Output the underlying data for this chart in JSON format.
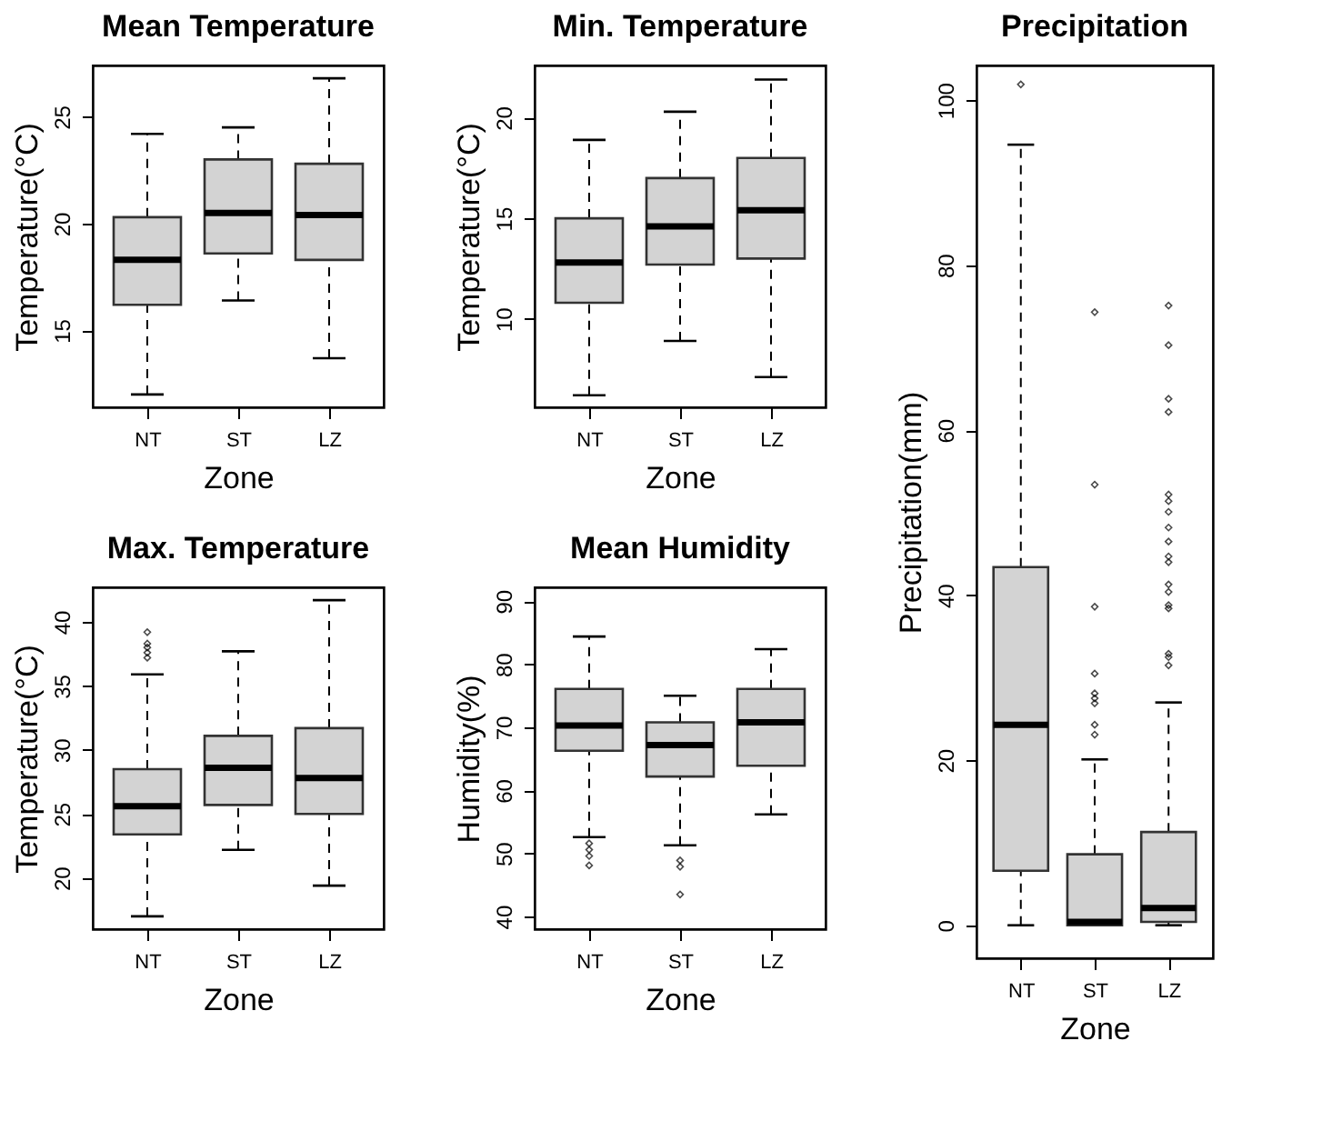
{
  "chart_data": [
    {
      "type": "box",
      "title": "Mean Temperature",
      "xlabel": "Zone",
      "ylabel": "Temperature(°C)",
      "categories": [
        "NT",
        "ST",
        "LZ"
      ],
      "ylim": [
        11.4,
        27.4
      ],
      "yticks": [
        15,
        20,
        25
      ],
      "grid": false,
      "series": [
        {
          "color": "#d3d3d3",
          "boxes": [
            {
              "low": 12.0,
              "q1": 16.2,
              "median": 18.3,
              "q3": 20.3,
              "high": 24.2
            },
            {
              "low": 16.4,
              "q1": 18.6,
              "median": 20.5,
              "q3": 23.0,
              "high": 24.5
            },
            {
              "low": 13.7,
              "q1": 18.3,
              "median": 20.4,
              "q3": 22.8,
              "high": 26.8
            }
          ]
        }
      ]
    },
    {
      "type": "box",
      "title": "Min. Temperature",
      "xlabel": "Zone",
      "ylabel": "Temperature(°C)",
      "categories": [
        "NT",
        "ST",
        "LZ"
      ],
      "ylim": [
        5.6,
        22.6
      ],
      "yticks": [
        10,
        15,
        20
      ],
      "grid": false,
      "series": [
        {
          "color": "#d3d3d3",
          "boxes": [
            {
              "low": 6.2,
              "q1": 10.8,
              "median": 12.8,
              "q3": 15.0,
              "high": 18.9
            },
            {
              "low": 8.9,
              "q1": 12.7,
              "median": 14.6,
              "q3": 17.0,
              "high": 20.3
            },
            {
              "low": 7.1,
              "q1": 13.0,
              "median": 15.4,
              "q3": 18.0,
              "high": 21.9
            }
          ]
        }
      ]
    },
    {
      "type": "box",
      "title": "Precipitation",
      "xlabel": "Zone",
      "ylabel": "Precipitation(mm)",
      "categories": [
        "NT",
        "ST",
        "LZ"
      ],
      "ylim": [
        -4.0,
        104.2
      ],
      "yticks": [
        0,
        20,
        40,
        60,
        80,
        100
      ],
      "grid": false,
      "series": [
        {
          "color": "#d3d3d3",
          "boxes": [
            {
              "low": 0,
              "q1": 6.6,
              "median": 24.3,
              "q3": 43.4,
              "high": 94.6,
              "outliers": [
                101.9
              ]
            },
            {
              "low": 0,
              "q1": 0,
              "median": 0.4,
              "q3": 8.6,
              "high": 20.1,
              "outliers": [
                74.3,
                53.4,
                38.6,
                30.5,
                28.1,
                27.5,
                26.9,
                24.3,
                23.1
              ]
            },
            {
              "low": 0,
              "q1": 0.4,
              "median": 2.1,
              "q3": 11.3,
              "high": 27.0,
              "outliers": [
                75.1,
                70.3,
                63.8,
                62.2,
                52.2,
                51.4,
                50.1,
                48.2,
                46.5,
                44.7,
                44.0,
                41.3,
                40.4,
                38.8,
                38.4,
                32.9,
                32.5,
                31.5
              ]
            }
          ]
        }
      ]
    },
    {
      "type": "box",
      "title": "Max. Temperature",
      "xlabel": "Zone",
      "ylabel": "Temperature(°C)",
      "categories": [
        "NT",
        "ST",
        "LZ"
      ],
      "ylim": [
        16.0,
        42.7
      ],
      "yticks": [
        20,
        25,
        30,
        35,
        40
      ],
      "grid": false,
      "series": [
        {
          "color": "#d3d3d3",
          "boxes": [
            {
              "low": 17.0,
              "q1": 23.4,
              "median": 25.6,
              "q3": 28.5,
              "high": 35.9,
              "outliers": [
                37.2,
                37.6,
                38.0,
                38.3,
                39.2
              ]
            },
            {
              "low": 22.2,
              "q1": 25.7,
              "median": 28.6,
              "q3": 31.1,
              "high": 37.7
            },
            {
              "low": 19.4,
              "q1": 25.0,
              "median": 27.8,
              "q3": 31.7,
              "high": 41.7
            }
          ]
        }
      ]
    },
    {
      "type": "box",
      "title": "Mean Humidity",
      "xlabel": "Zone",
      "ylabel": "Humidity(%)",
      "categories": [
        "NT",
        "ST",
        "LZ"
      ],
      "ylim": [
        38.0,
        92.2
      ],
      "yticks": [
        40,
        50,
        60,
        70,
        80,
        90
      ],
      "grid": false,
      "series": [
        {
          "color": "#d3d3d3",
          "boxes": [
            {
              "low": 52.6,
              "q1": 66.3,
              "median": 70.3,
              "q3": 76.1,
              "high": 84.4,
              "outliers": [
                51.6,
                50.6,
                49.6,
                48.1
              ]
            },
            {
              "low": 51.3,
              "q1": 62.2,
              "median": 67.2,
              "q3": 70.8,
              "high": 75.0,
              "outliers": [
                48.9,
                47.9,
                43.5
              ]
            },
            {
              "low": 56.2,
              "q1": 63.9,
              "median": 70.8,
              "q3": 76.1,
              "high": 82.4
            }
          ]
        }
      ]
    }
  ]
}
